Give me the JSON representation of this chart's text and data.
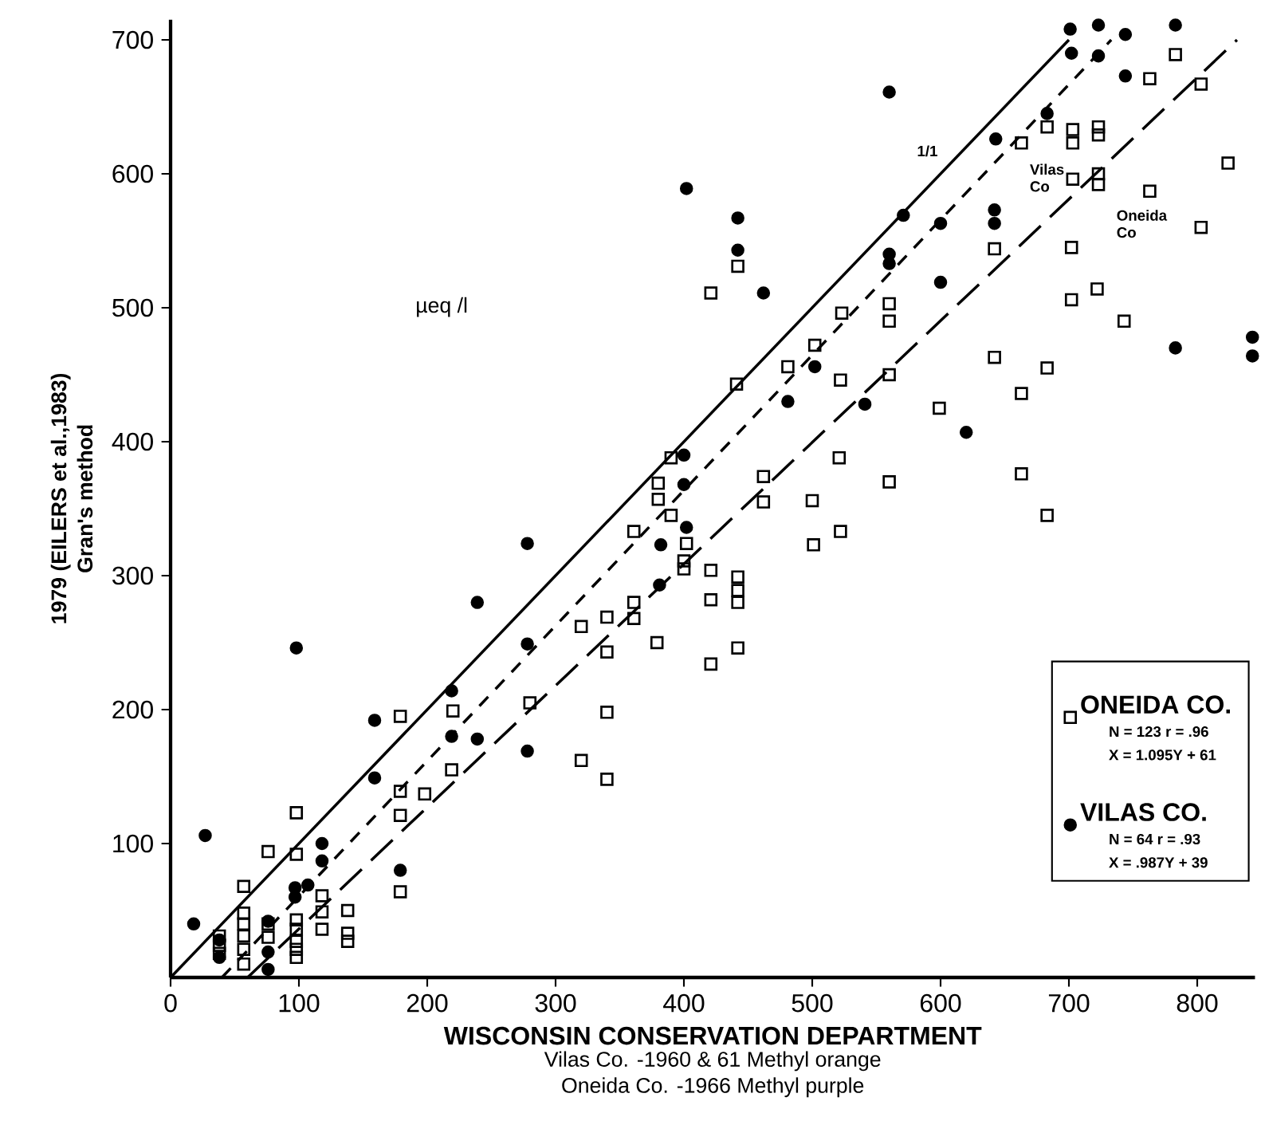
{
  "chart_data": {
    "type": "scatter",
    "xlabel": "WISCONSIN CONSERVATION DEPARTMENT",
    "ylabel": "1979 (EILERS et al.,1983)",
    "xlim": [
      0,
      845
    ],
    "ylim": [
      0,
      715
    ],
    "xticks": [
      0,
      100,
      200,
      300,
      400,
      500,
      600,
      700,
      800
    ],
    "yticks": [
      100,
      200,
      300,
      400,
      500,
      600,
      700
    ],
    "legend": "bottom right",
    "annotations": [
      "µeq /l",
      "Gran's method",
      "Vilas Co. -1960 & 61 Methyl  orange",
      "Oneida Co. -1966 Methyl purple",
      "N = 123   r = .96",
      "X = 1.095Y + 61",
      "N = 64   r = .93",
      "X = .987Y + 39",
      "1/1",
      "Vilas Co",
      "Oneida Co"
    ],
    "series": [
      {
        "name": "ONEIDA CO.",
        "color": "#000000",
        "marker": "square",
        "x": [
          783,
          763,
          803,
          663,
          683,
          703,
          703,
          723,
          723,
          824,
          703,
          723,
          723,
          763,
          803,
          642,
          702,
          722,
          702,
          743,
          421,
          442,
          523,
          560,
          560,
          502,
          481,
          441,
          522,
          560,
          642,
          683,
          663,
          599,
          521,
          560,
          663,
          390,
          380,
          380,
          462,
          462,
          500,
          361,
          390,
          402,
          400,
          400,
          361,
          361,
          421,
          421,
          442,
          442,
          442,
          379,
          442,
          421,
          501,
          522,
          683,
          340,
          340,
          320,
          280,
          340,
          320,
          340,
          220,
          179,
          219,
          198,
          179,
          179,
          179,
          98,
          98,
          76,
          57,
          118,
          118,
          118,
          138,
          138,
          138,
          98,
          98,
          98,
          98,
          98,
          57,
          57,
          57,
          57,
          57,
          38,
          38,
          38,
          76,
          76
        ],
        "values": [
          689,
          671,
          667,
          623,
          635,
          633,
          623,
          635,
          629,
          608,
          596,
          600,
          592,
          587,
          560,
          544,
          545,
          514,
          506,
          490,
          511,
          531,
          496,
          503,
          490,
          472,
          456,
          443,
          446,
          450,
          463,
          455,
          436,
          425,
          388,
          370,
          376,
          388,
          369,
          357,
          374,
          355,
          356,
          333,
          345,
          324,
          311,
          305,
          280,
          268,
          304,
          282,
          299,
          289,
          280,
          250,
          246,
          234,
          323,
          333,
          345,
          269,
          243,
          262,
          205,
          198,
          162,
          148,
          199,
          195,
          155,
          137,
          139,
          121,
          64,
          123,
          92,
          94,
          68,
          61,
          49,
          36,
          50,
          33,
          27,
          43,
          36,
          27,
          21,
          15,
          48,
          40,
          31,
          21,
          10,
          31,
          24,
          18,
          40,
          30
        ]
      },
      {
        "name": "VILAS CO.",
        "color": "#000000",
        "marker": "circle",
        "x": [
          701,
          723,
          744,
          783,
          702,
          723,
          744,
          560,
          683,
          643,
          402,
          442,
          442,
          462,
          571,
          600,
          560,
          560,
          642,
          642,
          600,
          502,
          481,
          541,
          620,
          783,
          400,
          400,
          402,
          382,
          381,
          278,
          239,
          98,
          278,
          219,
          159,
          219,
          239,
          278,
          159,
          118,
          118,
          27,
          18,
          97,
          97,
          107,
          179,
          38,
          38,
          76,
          76,
          76,
          843,
          843
        ],
        "values": [
          708,
          711,
          704,
          711,
          690,
          688,
          673,
          661,
          645,
          626,
          589,
          567,
          543,
          511,
          569,
          563,
          540,
          533,
          573,
          563,
          519,
          456,
          430,
          428,
          407,
          470,
          390,
          368,
          336,
          323,
          293,
          324,
          280,
          246,
          249,
          214,
          192,
          180,
          178,
          169,
          149,
          100,
          87,
          106,
          40,
          67,
          60,
          69,
          80,
          28,
          15,
          42,
          19,
          6,
          478,
          464
        ]
      },
      {
        "type": "line",
        "color": "#000000",
        "line_style": "solid",
        "x": [
          0,
          700
        ],
        "values": [
          0,
          700
        ]
      },
      {
        "type": "line",
        "color": "#000000",
        "line_style": "dashed",
        "x": [
          40,
          733
        ],
        "values": [
          0,
          700
        ]
      },
      {
        "type": "line",
        "color": "#000000",
        "line_style": "dashed",
        "x": [
          60,
          831
        ],
        "values": [
          0,
          700
        ]
      }
    ]
  }
}
